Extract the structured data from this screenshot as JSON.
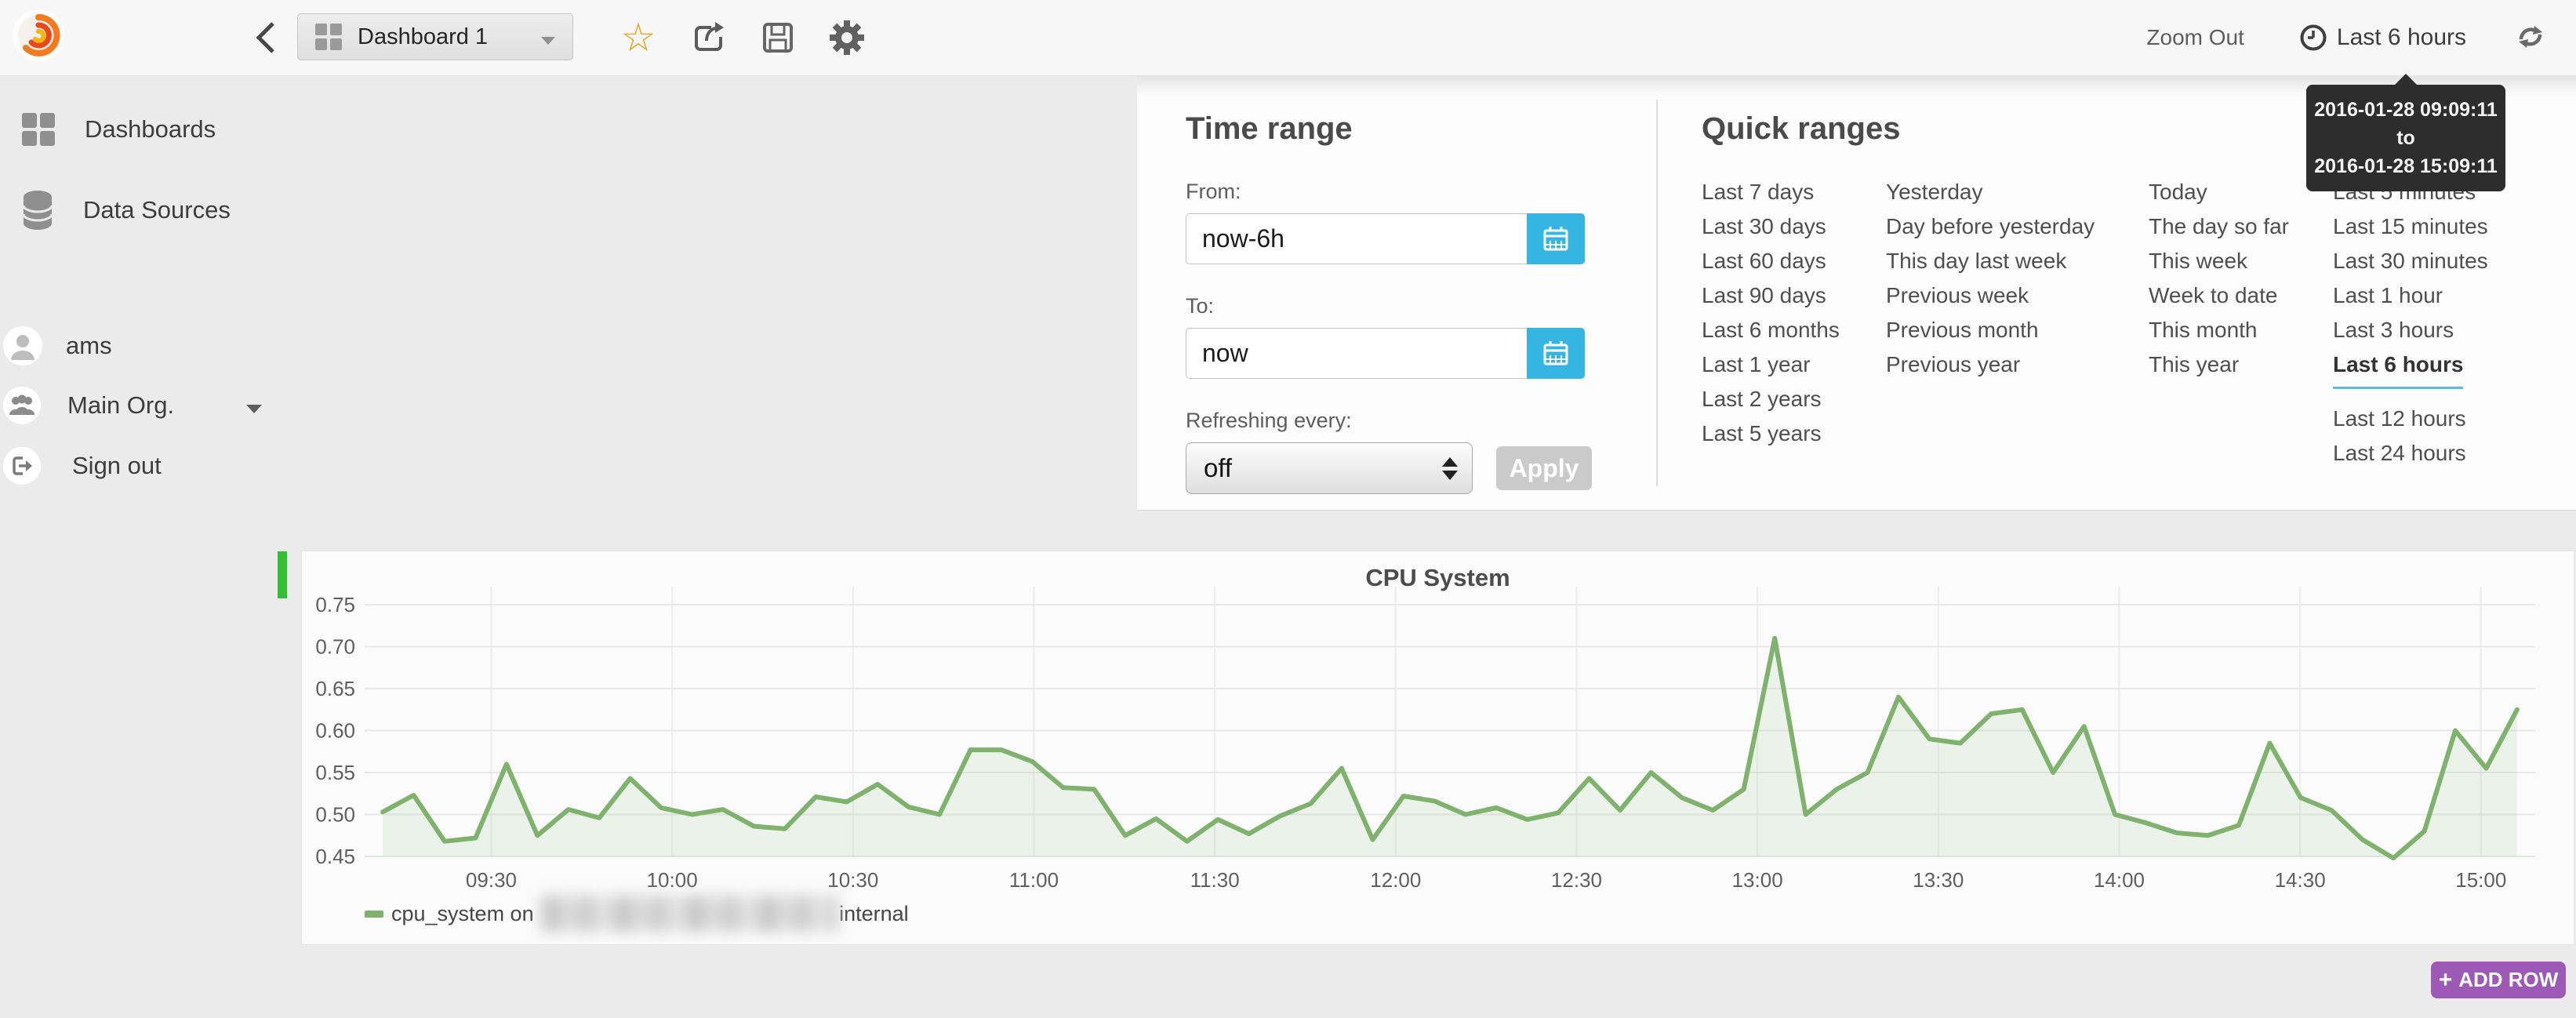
{
  "navbar": {
    "dashboard_title": "Dashboard 1",
    "zoom_out_label": "Zoom Out",
    "time_range_label": "Last 6 hours"
  },
  "tooltip": {
    "line1": "2016-01-28 09:09:11",
    "line2": "to",
    "line3": "2016-01-28 15:09:11"
  },
  "sidebar": {
    "items": [
      {
        "label": "Dashboards",
        "icon": "dashboards-grid-icon"
      },
      {
        "label": "Data Sources",
        "icon": "database-icon"
      }
    ],
    "user": "ams",
    "org": "Main Org.",
    "sign_out": "Sign out"
  },
  "timepicker": {
    "title": "Time range",
    "from_label": "From:",
    "from_value": "now-6h",
    "to_label": "To:",
    "to_value": "now",
    "refresh_label": "Refreshing every:",
    "refresh_value": "off",
    "apply_label": "Apply",
    "quick_title": "Quick ranges",
    "quick_ranges": {
      "col1": [
        "Last 7 days",
        "Last 30 days",
        "Last 60 days",
        "Last 90 days",
        "Last 6 months",
        "Last 1 year",
        "Last 2 years",
        "Last 5 years"
      ],
      "col2": [
        "Yesterday",
        "Day before yesterday",
        "This day last week",
        "Previous week",
        "Previous month",
        "Previous year"
      ],
      "col3": [
        "Today",
        "The day so far",
        "This week",
        "Week to date",
        "This month",
        "This year"
      ],
      "col4": [
        "Last 5 minutes",
        "Last 15 minutes",
        "Last 30 minutes",
        "Last 1 hour",
        "Last 3 hours",
        "Last 6 hours",
        "Last 12 hours",
        "Last 24 hours"
      ],
      "active": "Last 6 hours",
      "active_underline_color": "#64b8e4"
    }
  },
  "chart_data": {
    "type": "line",
    "title": "CPU System",
    "x_axis_start": "09:09",
    "x_axis_end": "15:09",
    "x_ticks": [
      "09:30",
      "10:00",
      "10:30",
      "11:00",
      "11:30",
      "12:00",
      "12:30",
      "13:00",
      "13:30",
      "14:00",
      "14:30",
      "15:00"
    ],
    "y_ticks": [
      "0.45",
      "0.50",
      "0.55",
      "0.60",
      "0.65",
      "0.70",
      "0.75"
    ],
    "ylim": [
      0.45,
      0.773
    ],
    "grid": true,
    "legend_position": "bottom-left",
    "legend": {
      "prefix": "cpu_system on",
      "redacted_middle": true,
      "suffix": "internal"
    },
    "series": [
      {
        "name": "cpu_system",
        "color": "#7eb26d",
        "fill_color": "rgba(126,178,109,0.12)",
        "window_start": "09:12",
        "window_end": "15:06",
        "values": [
          0.503,
          0.523,
          0.468,
          0.472,
          0.56,
          0.475,
          0.506,
          0.496,
          0.543,
          0.508,
          0.5,
          0.506,
          0.486,
          0.483,
          0.521,
          0.515,
          0.536,
          0.509,
          0.5,
          0.577,
          0.577,
          0.563,
          0.532,
          0.53,
          0.475,
          0.495,
          0.468,
          0.494,
          0.477,
          0.498,
          0.513,
          0.555,
          0.47,
          0.522,
          0.516,
          0.5,
          0.508,
          0.494,
          0.502,
          0.543,
          0.505,
          0.55,
          0.52,
          0.505,
          0.53,
          0.71,
          0.5,
          0.53,
          0.55,
          0.64,
          0.59,
          0.585,
          0.62,
          0.625,
          0.55,
          0.605,
          0.5,
          0.49,
          0.478,
          0.475,
          0.487,
          0.585,
          0.52,
          0.505,
          0.47,
          0.448,
          0.48,
          0.6,
          0.555,
          0.625
        ]
      }
    ]
  },
  "add_row": {
    "plus": "+",
    "label": "ADD ROW"
  }
}
